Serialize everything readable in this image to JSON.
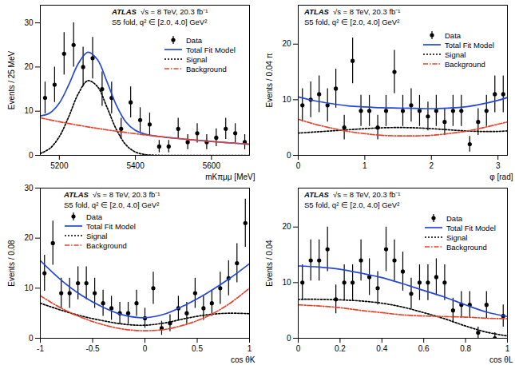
{
  "chart_data": [
    {
      "type": "scatter",
      "x_label": "mKπμμ [MeV]",
      "y_label": "Events / 25 MeV",
      "xlim": [
        5150,
        5700
      ],
      "ylim": [
        0,
        34
      ],
      "xticks": [
        5200,
        5400,
        5600
      ],
      "yticks": [
        0,
        10,
        20,
        30
      ],
      "annotations": [
        "ATLAS",
        "√s = 8 TeV, 20.3 fb⁻¹",
        "S5 fold, q² ∈ [2.0, 4.0] GeV²"
      ],
      "legend": "upper right",
      "series": [
        {
          "name": "Data",
          "type": "scatter",
          "color": "#000000",
          "marker": "circle",
          "x": [
            5162.5,
            5187.5,
            5212.5,
            5237.5,
            5262.5,
            5287.5,
            5312.5,
            5337.5,
            5362.5,
            5387.5,
            5412.5,
            5437.5,
            5462.5,
            5487.5,
            5512.5,
            5537.5,
            5562.5,
            5587.5,
            5612.5,
            5637.5,
            5662.5,
            5687.5
          ],
          "values": [
            13,
            16,
            23,
            25,
            20,
            22,
            15,
            13,
            6,
            12,
            8,
            7,
            2,
            2,
            6,
            3,
            5,
            3,
            4,
            6,
            5,
            3
          ],
          "errors": [
            3.6,
            4,
            4.8,
            5,
            4.5,
            4.7,
            3.9,
            3.6,
            2.4,
            3.5,
            2.8,
            2.6,
            1.4,
            1.4,
            2.4,
            1.7,
            2.2,
            1.7,
            2,
            2.4,
            2.2,
            1.7
          ]
        },
        {
          "name": "Total Fit Model",
          "type": "line",
          "color": "#2447d8",
          "line_style": "solid",
          "x": [
            5150,
            5175,
            5200,
            5225,
            5250,
            5275,
            5300,
            5325,
            5350,
            5375,
            5400,
            5425,
            5450,
            5475,
            5500,
            5525,
            5550,
            5575,
            5600,
            5625,
            5650,
            5675,
            5700
          ],
          "values": [
            8.93,
            9.6,
            11.85,
            16.01,
            20.8,
            23.35,
            21.69,
            16.73,
            11.34,
            7.56,
            5.64,
            4.81,
            4.41,
            4.15,
            3.92,
            3.71,
            3.51,
            3.33,
            3.15,
            2.98,
            2.82,
            2.67,
            2.52
          ]
        },
        {
          "name": "Signal",
          "type": "line",
          "color": "#000000",
          "line_style": "dotted",
          "x": [
            5150,
            5175,
            5200,
            5225,
            5250,
            5275,
            5300,
            5325,
            5350,
            5375,
            5400,
            5425,
            5450,
            5475,
            5500,
            5525,
            5550,
            5575,
            5600,
            5625,
            5650,
            5675,
            5700
          ],
          "values": [
            0.43,
            1.56,
            4.24,
            8.81,
            13.98,
            16.9,
            15.59,
            10.95,
            5.87,
            2.39,
            0.75,
            0.18,
            0.03,
            0,
            0,
            0,
            0,
            0,
            0,
            0,
            0,
            0,
            0
          ]
        },
        {
          "name": "Background",
          "type": "line",
          "color": "#e8412c",
          "line_style": "dashdot",
          "x": [
            5150,
            5175,
            5200,
            5225,
            5250,
            5275,
            5300,
            5325,
            5350,
            5375,
            5400,
            5425,
            5450,
            5475,
            5500,
            5525,
            5550,
            5575,
            5600,
            5625,
            5650,
            5675,
            5700
          ],
          "values": [
            8.5,
            8.04,
            7.61,
            7.2,
            6.82,
            6.45,
            6.1,
            5.78,
            5.47,
            5.17,
            4.89,
            4.63,
            4.38,
            4.15,
            3.92,
            3.71,
            3.51,
            3.33,
            3.15,
            2.98,
            2.82,
            2.67,
            2.52
          ]
        }
      ]
    },
    {
      "type": "scatter",
      "x_label": "φ [rad]",
      "y_label": "Events / 0.04 π",
      "xlim": [
        0,
        3.1416
      ],
      "ylim": [
        0,
        27
      ],
      "xticks": [
        0,
        1,
        2,
        3
      ],
      "yticks": [
        0,
        10,
        20
      ],
      "annotations": [
        "ATLAS",
        "√s = 8 TeV, 20.3 fb⁻¹",
        "S5 fold, q² ∈ [2.0, 4.0] GeV²"
      ],
      "legend": "upper right",
      "series": [
        {
          "name": "Data",
          "type": "scatter",
          "color": "#000000",
          "marker": "circle",
          "x": [
            0.063,
            0.188,
            0.314,
            0.44,
            0.565,
            0.691,
            0.817,
            0.942,
            1.068,
            1.194,
            1.319,
            1.445,
            1.571,
            1.696,
            1.822,
            1.948,
            2.073,
            2.199,
            2.325,
            2.45,
            2.576,
            2.702,
            2.827,
            2.953,
            3.079
          ],
          "values": [
            9,
            10,
            11,
            9,
            12,
            5,
            17,
            8,
            8,
            5,
            8,
            15,
            8,
            9,
            8,
            7,
            8,
            6,
            8,
            8,
            2,
            6,
            8,
            11,
            11
          ],
          "errors": [
            3,
            3.2,
            3.3,
            3,
            3.5,
            2.2,
            4.1,
            2.8,
            2.8,
            2.2,
            2.8,
            3.9,
            2.8,
            3,
            2.8,
            2.6,
            2.8,
            2.4,
            2.8,
            2.8,
            1.4,
            2.4,
            2.8,
            3.3,
            3.3
          ]
        },
        {
          "name": "Total Fit Model",
          "type": "line",
          "color": "#2447d8",
          "line_style": "solid",
          "x": [
            0,
            0.25,
            0.5,
            0.75,
            1,
            1.25,
            1.5,
            1.75,
            2,
            2.25,
            2.5,
            2.75,
            3,
            3.1416
          ],
          "values": [
            10.5,
            9.8,
            9.3,
            8.9,
            8.7,
            8.55,
            8.5,
            8.45,
            8.4,
            8.5,
            8.7,
            9.2,
            9.9,
            10.4
          ]
        },
        {
          "name": "Signal",
          "type": "line",
          "color": "#000000",
          "line_style": "dotted",
          "x": [
            0,
            0.25,
            0.5,
            0.75,
            1,
            1.25,
            1.5,
            1.75,
            2,
            2.25,
            2.5,
            2.75,
            3,
            3.1416
          ],
          "values": [
            4.0,
            4.2,
            4.4,
            4.6,
            4.8,
            4.95,
            5.0,
            4.95,
            4.8,
            4.6,
            4.4,
            4.3,
            4.3,
            4.4
          ]
        },
        {
          "name": "Background",
          "type": "line",
          "color": "#e8412c",
          "line_style": "dashdot",
          "x": [
            0,
            0.25,
            0.5,
            0.75,
            1,
            1.25,
            1.5,
            1.75,
            2,
            2.25,
            2.5,
            2.75,
            3,
            3.1416
          ],
          "values": [
            6.5,
            5.6,
            4.9,
            4.3,
            3.9,
            3.6,
            3.5,
            3.5,
            3.6,
            3.9,
            4.3,
            4.9,
            5.6,
            6.0
          ]
        }
      ]
    },
    {
      "type": "scatter",
      "x_label": "cos θK",
      "y_label": "Events / 0.08",
      "xlim": [
        -1,
        1
      ],
      "ylim": [
        0,
        30
      ],
      "xticks": [
        -1,
        -0.5,
        0,
        0.5,
        1
      ],
      "yticks": [
        0,
        10,
        20,
        30
      ],
      "annotations": [
        "ATLAS",
        "√s = 8 TeV, 20.3 fb⁻¹",
        "S5 fold, q² ∈ [2.0, 4.0] GeV²"
      ],
      "legend": "upper center",
      "series": [
        {
          "name": "Data",
          "type": "scatter",
          "color": "#000000",
          "marker": "circle",
          "x": [
            -0.96,
            -0.88,
            -0.8,
            -0.72,
            -0.64,
            -0.56,
            -0.48,
            -0.4,
            -0.32,
            -0.24,
            -0.16,
            -0.08,
            0,
            0.08,
            0.16,
            0.24,
            0.32,
            0.4,
            0.48,
            0.56,
            0.64,
            0.72,
            0.8,
            0.88,
            0.96
          ],
          "values": [
            13,
            19,
            9,
            9,
            11,
            11,
            9,
            7,
            6,
            5,
            5,
            7,
            4,
            10,
            2,
            3,
            6,
            5,
            9,
            6,
            7,
            10,
            12,
            15,
            23
          ],
          "errors": [
            3.6,
            4.4,
            3,
            3,
            3.3,
            3.3,
            3,
            2.6,
            2.4,
            2.2,
            2.2,
            2.6,
            2,
            3.2,
            1.4,
            1.7,
            2.4,
            2.2,
            3,
            2.4,
            2.6,
            3.2,
            3.5,
            3.9,
            4.8
          ]
        },
        {
          "name": "Total Fit Model",
          "type": "line",
          "color": "#2447d8",
          "line_style": "solid",
          "x": [
            -1,
            -0.8,
            -0.6,
            -0.4,
            -0.2,
            0,
            0.2,
            0.4,
            0.6,
            0.8,
            1
          ],
          "values": [
            15.5,
            11.6,
            8.5,
            6.2,
            4.6,
            4.1,
            4.9,
            6.8,
            9.1,
            11.8,
            14.9
          ]
        },
        {
          "name": "Signal",
          "type": "line",
          "color": "#000000",
          "line_style": "dotted",
          "x": [
            -1,
            -0.8,
            -0.6,
            -0.4,
            -0.2,
            0,
            0.2,
            0.4,
            0.6,
            0.8,
            1
          ],
          "values": [
            7.0,
            5.6,
            4.4,
            3.5,
            2.8,
            2.6,
            3.1,
            4.0,
            4.7,
            5.0,
            4.9
          ]
        },
        {
          "name": "Background",
          "type": "line",
          "color": "#e8412c",
          "line_style": "dashdot",
          "x": [
            -1,
            -0.8,
            -0.6,
            -0.4,
            -0.2,
            0,
            0.2,
            0.4,
            0.6,
            0.8,
            1
          ],
          "values": [
            8.5,
            6.0,
            4.1,
            2.7,
            1.8,
            1.5,
            1.8,
            2.8,
            4.4,
            6.8,
            10.0
          ]
        }
      ]
    },
    {
      "type": "scatter",
      "x_label": "cos θL",
      "y_label": "Events / 0.04",
      "xlim": [
        0,
        1
      ],
      "ylim": [
        0,
        27
      ],
      "xticks": [
        0,
        0.2,
        0.4,
        0.6,
        0.8,
        1
      ],
      "yticks": [
        0,
        10,
        20
      ],
      "annotations": [
        "ATLAS",
        "√s = 8 TeV, 20.3 fb⁻¹",
        "S5 fold, q² ∈ [2.0, 4.0] GeV²"
      ],
      "legend": "upper right",
      "series": [
        {
          "name": "Data",
          "type": "scatter",
          "color": "#000000",
          "marker": "circle",
          "x": [
            0.02,
            0.06,
            0.1,
            0.14,
            0.18,
            0.22,
            0.26,
            0.3,
            0.34,
            0.38,
            0.42,
            0.46,
            0.5,
            0.54,
            0.58,
            0.62,
            0.66,
            0.7,
            0.74,
            0.78,
            0.82,
            0.86,
            0.9,
            0.94,
            0.98
          ],
          "values": [
            10,
            14,
            14,
            16,
            7,
            10,
            10,
            14,
            11,
            9,
            16,
            14,
            12,
            8,
            10,
            10,
            11,
            10,
            5,
            6,
            6,
            1,
            6,
            0,
            4
          ],
          "errors": [
            3.2,
            3.7,
            3.7,
            4,
            2.6,
            3.2,
            3.2,
            3.7,
            3.3,
            3,
            4,
            3.7,
            3.5,
            2.8,
            3.2,
            3.2,
            3.3,
            3.2,
            2.2,
            2.4,
            2.4,
            1,
            2.4,
            1,
            2
          ]
        },
        {
          "name": "Total Fit Model",
          "type": "line",
          "color": "#2447d8",
          "line_style": "solid",
          "x": [
            0,
            0.1,
            0.2,
            0.3,
            0.4,
            0.5,
            0.6,
            0.7,
            0.8,
            0.9,
            1
          ],
          "values": [
            13,
            12.8,
            12.4,
            11.7,
            10.9,
            9.8,
            8.6,
            7.4,
            6.0,
            4.7,
            3.9
          ]
        },
        {
          "name": "Signal",
          "type": "line",
          "color": "#000000",
          "line_style": "dotted",
          "x": [
            0,
            0.1,
            0.2,
            0.3,
            0.4,
            0.5,
            0.6,
            0.7,
            0.8,
            0.9,
            1
          ],
          "values": [
            7,
            7,
            6.9,
            6.7,
            6.3,
            5.6,
            4.6,
            3.5,
            2.2,
            1.1,
            0.4
          ]
        },
        {
          "name": "Background",
          "type": "line",
          "color": "#e8412c",
          "line_style": "dashdot",
          "x": [
            0,
            0.1,
            0.2,
            0.3,
            0.4,
            0.5,
            0.6,
            0.7,
            0.8,
            0.9,
            1
          ],
          "values": [
            6,
            5.8,
            5.5,
            5,
            4.6,
            4.2,
            4,
            3.9,
            3.8,
            3.6,
            3.5
          ]
        }
      ]
    }
  ]
}
